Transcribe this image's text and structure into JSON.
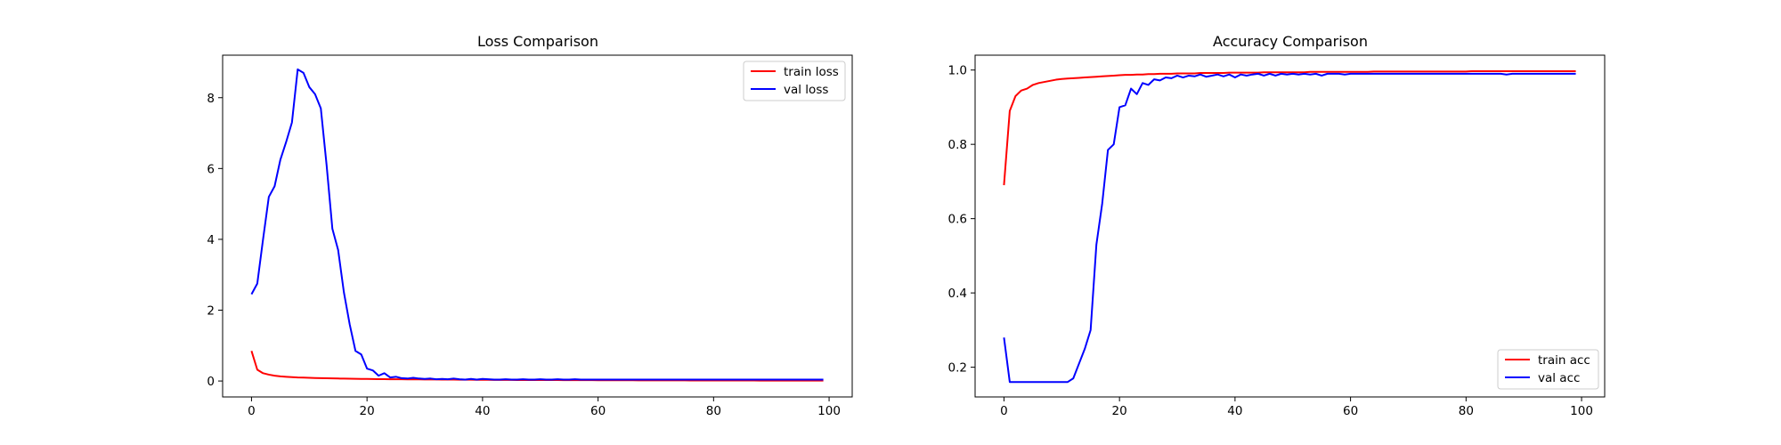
{
  "chart_data": [
    {
      "type": "line",
      "title": "Loss Comparison",
      "xlabel": "",
      "ylabel": "",
      "xlim": [
        -5,
        104
      ],
      "ylim": [
        -0.45,
        9.2
      ],
      "xticks": [
        0,
        20,
        40,
        60,
        80,
        100
      ],
      "yticks": [
        0,
        2,
        4,
        6,
        8
      ],
      "legend": "top-right",
      "grid": false,
      "x": [
        0,
        1,
        2,
        3,
        4,
        5,
        6,
        7,
        8,
        9,
        10,
        11,
        12,
        13,
        14,
        15,
        16,
        17,
        18,
        19,
        20,
        21,
        22,
        23,
        24,
        25,
        26,
        27,
        28,
        29,
        30,
        31,
        32,
        33,
        34,
        35,
        36,
        37,
        38,
        39,
        40,
        41,
        42,
        43,
        44,
        45,
        46,
        47,
        48,
        49,
        50,
        51,
        52,
        53,
        54,
        55,
        56,
        57,
        58,
        59,
        60,
        61,
        62,
        63,
        64,
        65,
        66,
        67,
        68,
        69,
        70,
        71,
        72,
        73,
        74,
        75,
        76,
        77,
        78,
        79,
        80,
        81,
        82,
        83,
        84,
        85,
        86,
        87,
        88,
        89,
        90,
        91,
        92,
        93,
        94,
        95,
        96,
        97,
        98,
        99
      ],
      "series": [
        {
          "name": "train loss",
          "color": "#ff0000",
          "values": [
            0.85,
            0.32,
            0.22,
            0.18,
            0.15,
            0.13,
            0.12,
            0.11,
            0.1,
            0.095,
            0.09,
            0.085,
            0.08,
            0.078,
            0.075,
            0.07,
            0.068,
            0.065,
            0.062,
            0.06,
            0.058,
            0.056,
            0.054,
            0.052,
            0.05,
            0.049,
            0.048,
            0.047,
            0.046,
            0.045,
            0.044,
            0.043,
            0.042,
            0.041,
            0.04,
            0.039,
            0.038,
            0.037,
            0.036,
            0.035,
            0.034,
            0.033,
            0.032,
            0.031,
            0.03,
            0.03,
            0.029,
            0.029,
            0.028,
            0.028,
            0.027,
            0.027,
            0.026,
            0.026,
            0.025,
            0.025,
            0.024,
            0.024,
            0.023,
            0.023,
            0.022,
            0.022,
            0.021,
            0.021,
            0.02,
            0.02,
            0.02,
            0.019,
            0.019,
            0.019,
            0.018,
            0.018,
            0.018,
            0.017,
            0.017,
            0.017,
            0.016,
            0.016,
            0.016,
            0.016,
            0.015,
            0.015,
            0.015,
            0.015,
            0.014,
            0.014,
            0.014,
            0.014,
            0.013,
            0.013,
            0.013,
            0.013,
            0.012,
            0.012,
            0.012,
            0.012,
            0.012,
            0.011,
            0.011,
            0.011
          ]
        },
        {
          "name": "val loss",
          "color": "#0000ff",
          "values": [
            2.45,
            2.75,
            4.0,
            5.2,
            5.5,
            6.25,
            6.75,
            7.3,
            8.8,
            8.7,
            8.3,
            8.1,
            7.7,
            6.1,
            4.3,
            3.7,
            2.5,
            1.6,
            0.85,
            0.75,
            0.35,
            0.3,
            0.15,
            0.22,
            0.1,
            0.12,
            0.08,
            0.07,
            0.09,
            0.07,
            0.06,
            0.07,
            0.05,
            0.06,
            0.05,
            0.07,
            0.05,
            0.04,
            0.06,
            0.04,
            0.06,
            0.05,
            0.04,
            0.04,
            0.05,
            0.04,
            0.04,
            0.05,
            0.04,
            0.04,
            0.05,
            0.04,
            0.04,
            0.05,
            0.04,
            0.04,
            0.05,
            0.04,
            0.04,
            0.04,
            0.04,
            0.04,
            0.04,
            0.04,
            0.04,
            0.04,
            0.04,
            0.04,
            0.04,
            0.04,
            0.04,
            0.04,
            0.04,
            0.04,
            0.04,
            0.04,
            0.04,
            0.04,
            0.04,
            0.04,
            0.04,
            0.04,
            0.04,
            0.04,
            0.04,
            0.04,
            0.04,
            0.04,
            0.04,
            0.04,
            0.04,
            0.04,
            0.04,
            0.04,
            0.04,
            0.04,
            0.04,
            0.04,
            0.04,
            0.04
          ]
        }
      ]
    },
    {
      "type": "line",
      "title": "Accuracy Comparison",
      "xlabel": "",
      "ylabel": "",
      "xlim": [
        -5,
        104
      ],
      "ylim": [
        0.12,
        1.04
      ],
      "xticks": [
        0,
        20,
        40,
        60,
        80,
        100
      ],
      "yticks": [
        0.2,
        0.4,
        0.6,
        0.8,
        1.0
      ],
      "legend": "bottom-right",
      "grid": false,
      "x": [
        0,
        1,
        2,
        3,
        4,
        5,
        6,
        7,
        8,
        9,
        10,
        11,
        12,
        13,
        14,
        15,
        16,
        17,
        18,
        19,
        20,
        21,
        22,
        23,
        24,
        25,
        26,
        27,
        28,
        29,
        30,
        31,
        32,
        33,
        34,
        35,
        36,
        37,
        38,
        39,
        40,
        41,
        42,
        43,
        44,
        45,
        46,
        47,
        48,
        49,
        50,
        51,
        52,
        53,
        54,
        55,
        56,
        57,
        58,
        59,
        60,
        61,
        62,
        63,
        64,
        65,
        66,
        67,
        68,
        69,
        70,
        71,
        72,
        73,
        74,
        75,
        76,
        77,
        78,
        79,
        80,
        81,
        82,
        83,
        84,
        85,
        86,
        87,
        88,
        89,
        90,
        91,
        92,
        93,
        94,
        95,
        96,
        97,
        98,
        99
      ],
      "series": [
        {
          "name": "train acc",
          "color": "#ff0000",
          "values": [
            0.69,
            0.89,
            0.93,
            0.945,
            0.95,
            0.96,
            0.965,
            0.968,
            0.971,
            0.974,
            0.976,
            0.977,
            0.978,
            0.979,
            0.98,
            0.981,
            0.982,
            0.983,
            0.984,
            0.985,
            0.986,
            0.987,
            0.987,
            0.988,
            0.988,
            0.989,
            0.989,
            0.99,
            0.99,
            0.99,
            0.991,
            0.991,
            0.991,
            0.991,
            0.992,
            0.992,
            0.992,
            0.992,
            0.992,
            0.993,
            0.993,
            0.993,
            0.993,
            0.993,
            0.993,
            0.994,
            0.994,
            0.994,
            0.994,
            0.994,
            0.994,
            0.994,
            0.994,
            0.995,
            0.995,
            0.995,
            0.995,
            0.995,
            0.995,
            0.995,
            0.995,
            0.995,
            0.995,
            0.995,
            0.996,
            0.996,
            0.996,
            0.996,
            0.996,
            0.996,
            0.996,
            0.996,
            0.996,
            0.996,
            0.996,
            0.996,
            0.996,
            0.996,
            0.996,
            0.996,
            0.996,
            0.997,
            0.997,
            0.997,
            0.997,
            0.997,
            0.997,
            0.997,
            0.997,
            0.997,
            0.997,
            0.997,
            0.997,
            0.997,
            0.997,
            0.997,
            0.997,
            0.997,
            0.997,
            0.997
          ]
        },
        {
          "name": "val acc",
          "color": "#0000ff",
          "values": [
            0.28,
            0.16,
            0.16,
            0.16,
            0.16,
            0.16,
            0.16,
            0.16,
            0.16,
            0.16,
            0.16,
            0.16,
            0.17,
            0.21,
            0.25,
            0.3,
            0.53,
            0.64,
            0.785,
            0.8,
            0.9,
            0.905,
            0.95,
            0.935,
            0.965,
            0.96,
            0.975,
            0.972,
            0.98,
            0.978,
            0.985,
            0.98,
            0.985,
            0.983,
            0.988,
            0.982,
            0.985,
            0.988,
            0.983,
            0.988,
            0.98,
            0.988,
            0.985,
            0.988,
            0.99,
            0.985,
            0.99,
            0.985,
            0.99,
            0.988,
            0.99,
            0.988,
            0.99,
            0.988,
            0.99,
            0.985,
            0.99,
            0.99,
            0.99,
            0.988,
            0.99,
            0.99,
            0.99,
            0.99,
            0.99,
            0.99,
            0.99,
            0.99,
            0.99,
            0.99,
            0.99,
            0.99,
            0.99,
            0.99,
            0.99,
            0.99,
            0.99,
            0.99,
            0.99,
            0.99,
            0.99,
            0.99,
            0.99,
            0.99,
            0.99,
            0.99,
            0.99,
            0.988,
            0.99,
            0.99,
            0.99,
            0.99,
            0.99,
            0.99,
            0.99,
            0.99,
            0.99,
            0.99,
            0.99,
            0.99
          ]
        }
      ]
    }
  ]
}
